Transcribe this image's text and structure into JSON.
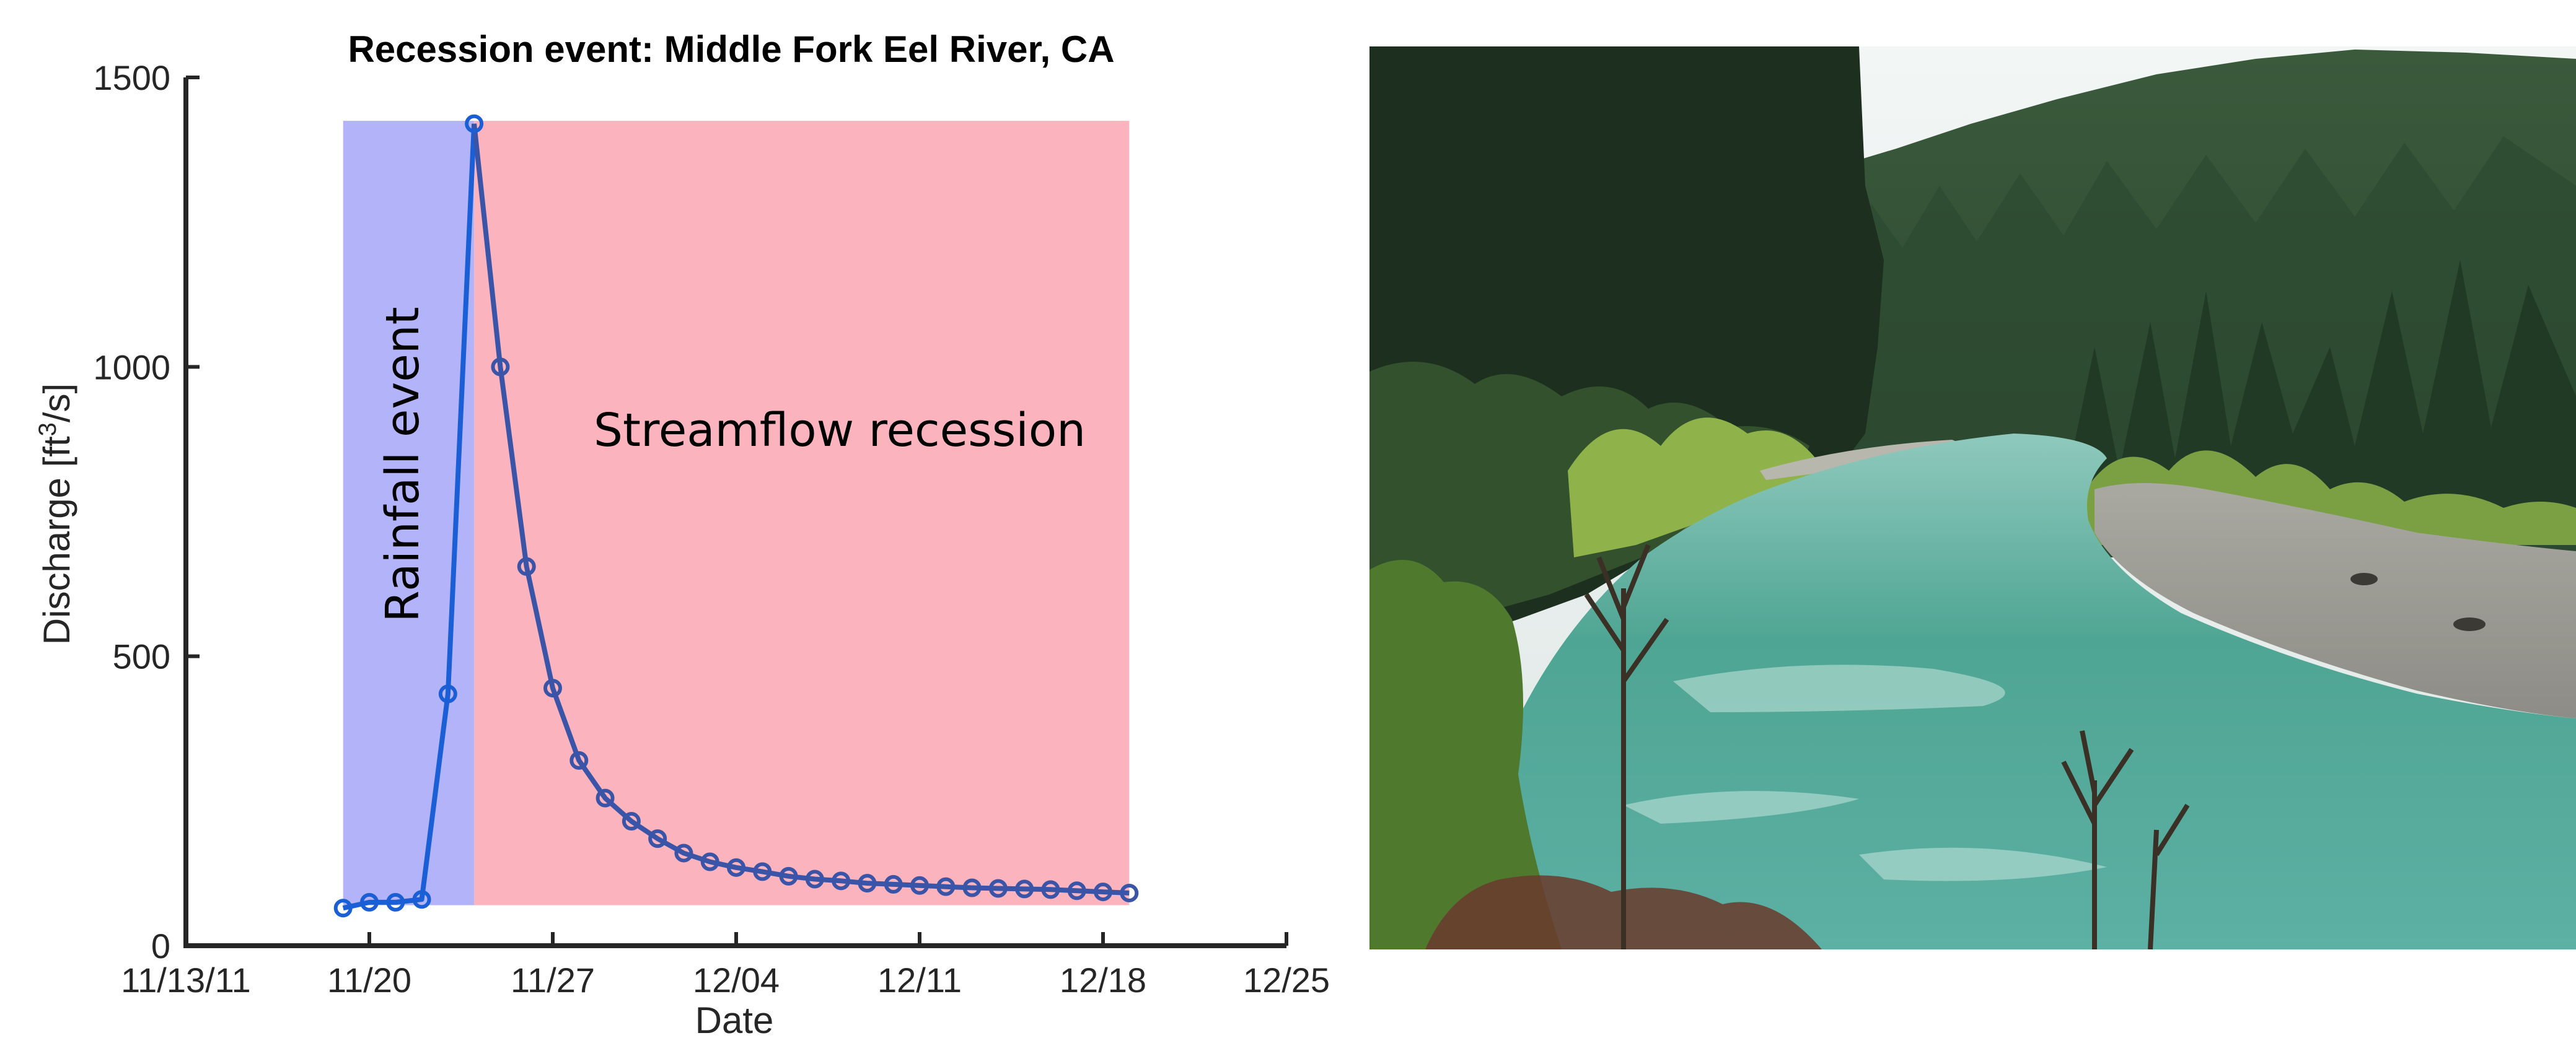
{
  "chart_data": {
    "type": "line",
    "title": "Recession event: Middle Fork Eel River, CA",
    "xlabel": "Date",
    "ylabel_parts": [
      "Discharge [ft",
      "3",
      "/s]"
    ],
    "xlim": [
      "2011-11-13",
      "2011-12-25"
    ],
    "ylim": [
      0,
      1500
    ],
    "x_ticks": [
      {
        "date": "2011-11-13",
        "label": "11/13/11"
      },
      {
        "date": "2011-11-20",
        "label": "11/20"
      },
      {
        "date": "2011-11-27",
        "label": "11/27"
      },
      {
        "date": "2011-12-04",
        "label": "12/04"
      },
      {
        "date": "2011-12-11",
        "label": "12/11"
      },
      {
        "date": "2011-12-18",
        "label": "12/18"
      },
      {
        "date": "2011-12-25",
        "label": "12/25"
      }
    ],
    "y_ticks": [
      0,
      500,
      1000,
      1500
    ],
    "grid": false,
    "regions": [
      {
        "label": "Rainfall event",
        "x_start": "2011-11-19",
        "x_end": "2011-11-24",
        "y_start": 70,
        "y_end": 1425,
        "color": "#b3b3fa"
      },
      {
        "label": "Streamflow recession",
        "x_start": "2011-11-24",
        "x_end": "2011-12-19",
        "y_start": 70,
        "y_end": 1425,
        "color": "#fbb3bd"
      }
    ],
    "series": [
      {
        "color_rain": "#1a5fd6",
        "color_recession": "#3a55a8",
        "x": [
          "2011-11-19",
          "2011-11-20",
          "2011-11-21",
          "2011-11-22",
          "2011-11-23",
          "2011-11-24",
          "2011-11-25",
          "2011-11-26",
          "2011-11-27",
          "2011-11-28",
          "2011-11-29",
          "2011-11-30",
          "2011-12-01",
          "2011-12-02",
          "2011-12-03",
          "2011-12-04",
          "2011-12-05",
          "2011-12-06",
          "2011-12-07",
          "2011-12-08",
          "2011-12-09",
          "2011-12-10",
          "2011-12-11",
          "2011-12-12",
          "2011-12-13",
          "2011-12-14",
          "2011-12-15",
          "2011-12-16",
          "2011-12-17",
          "2011-12-18",
          "2011-12-19"
        ],
        "y": [
          65,
          75,
          75,
          80,
          435,
          1420,
          1000,
          655,
          445,
          320,
          255,
          215,
          185,
          160,
          145,
          135,
          128,
          120,
          115,
          112,
          108,
          106,
          104,
          102,
          100,
          99,
          98,
          97,
          95,
          93,
          91
        ]
      }
    ]
  },
  "photo": {
    "subject": "river-canyon-photo"
  }
}
